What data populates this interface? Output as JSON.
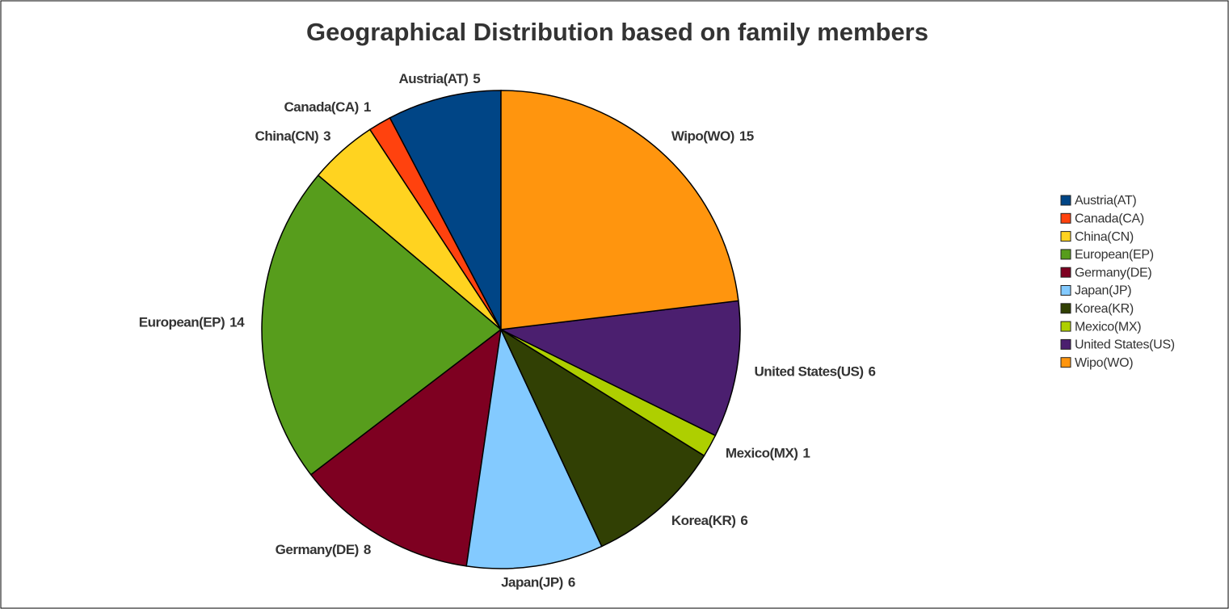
{
  "chart_data": {
    "type": "pie",
    "title": "Geographical Distribution based on family members",
    "categories": [
      "Austria(AT)",
      "Canada(CA)",
      "China(CN)",
      "European(EP)",
      "Germany(DE)",
      "Japan(JP)",
      "Korea(KR)",
      "Mexico(MX)",
      "United States(US)",
      "Wipo(WO)"
    ],
    "values": [
      5,
      1,
      3,
      14,
      8,
      6,
      6,
      1,
      6,
      15
    ],
    "colors": [
      "#004586",
      "#ff420e",
      "#ffd320",
      "#579d1c",
      "#7e0021",
      "#83caff",
      "#314004",
      "#aecf00",
      "#4b1f6f",
      "#ff950e"
    ],
    "legend": "right"
  }
}
